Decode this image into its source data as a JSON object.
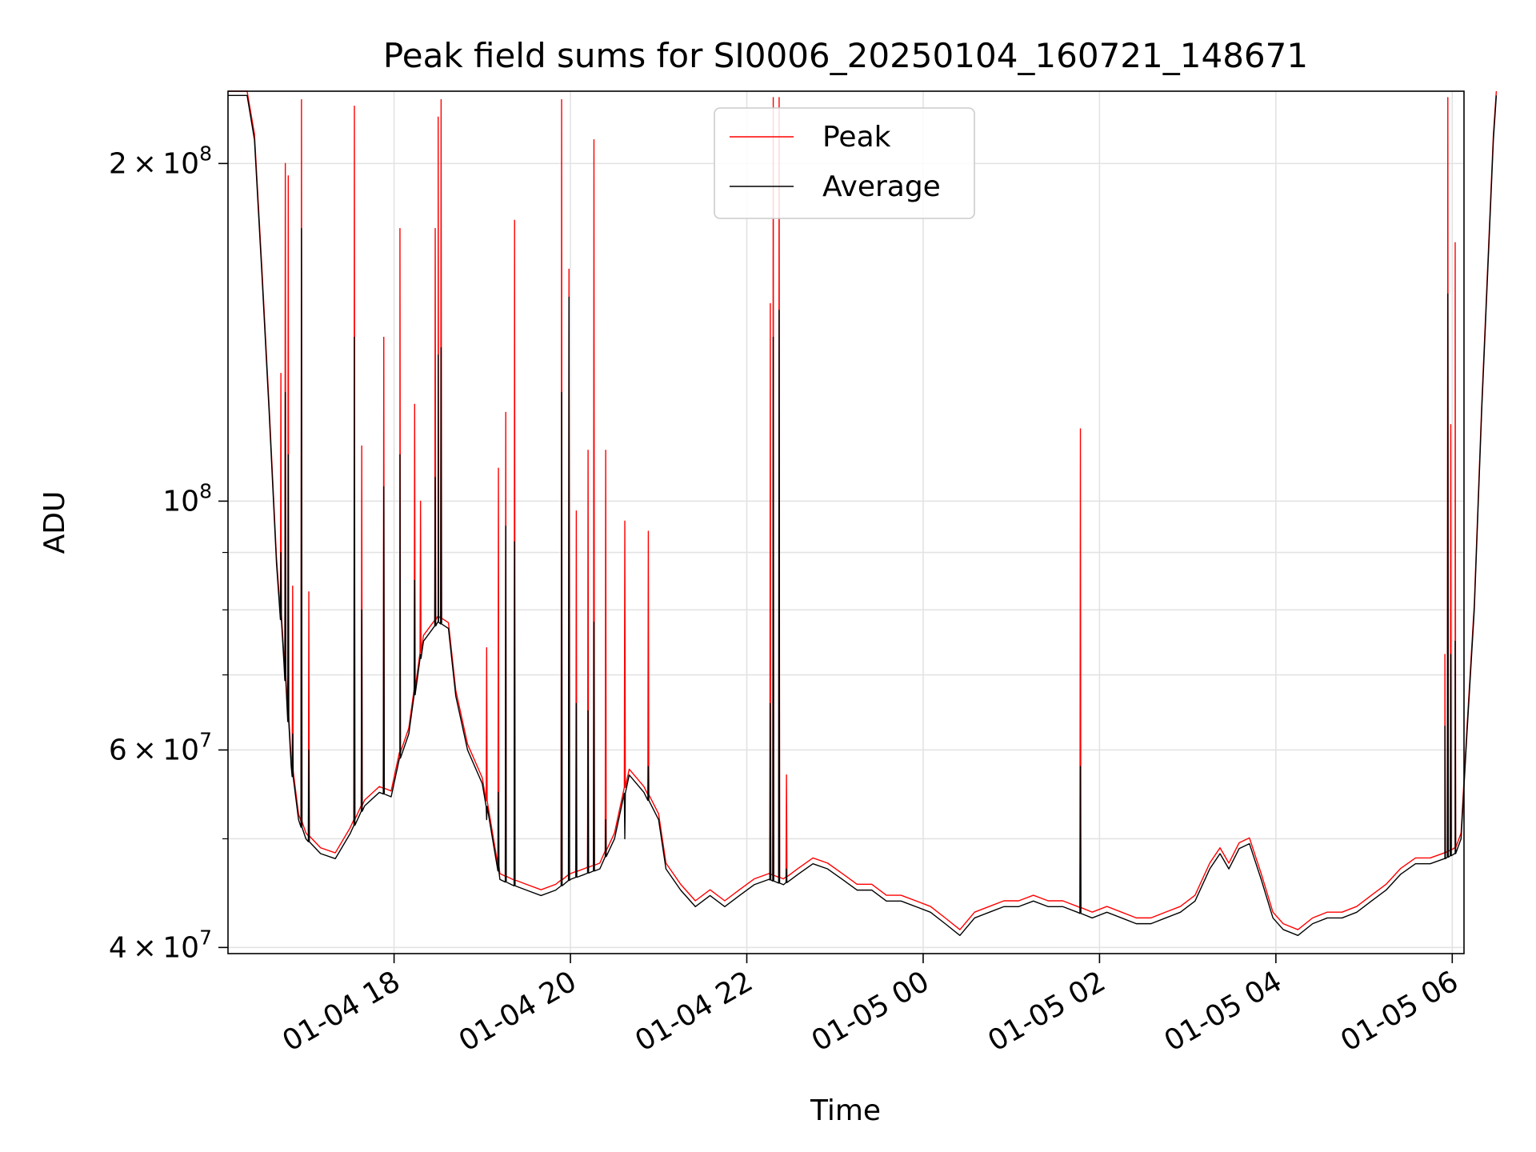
{
  "chart_data": {
    "type": "line",
    "title": "Peak field sums for SI0006_20250104_160721_148671",
    "xlabel": "Time",
    "ylabel": "ADU",
    "y_scale": "log",
    "ylim": [
      39500000,
      232000000
    ],
    "xlim": [
      "2025-01-04 16:07",
      "2025-01-05 06:08"
    ],
    "grid": true,
    "legend_position": "top-center",
    "x_ticks": [
      {
        "value": "2025-01-04 18:00",
        "label": "01-04 18"
      },
      {
        "value": "2025-01-04 20:00",
        "label": "01-04 20"
      },
      {
        "value": "2025-01-04 22:00",
        "label": "01-04 22"
      },
      {
        "value": "2025-01-05 00:00",
        "label": "01-05 00"
      },
      {
        "value": "2025-01-05 02:00",
        "label": "01-05 02"
      },
      {
        "value": "2025-01-05 04:00",
        "label": "01-05 04"
      },
      {
        "value": "2025-01-05 06:00",
        "label": "01-05 06"
      }
    ],
    "y_ticks": [
      {
        "value": 40000000,
        "mantissa": "4",
        "exp": "7"
      },
      {
        "value": 60000000,
        "mantissa": "6",
        "exp": "7"
      },
      {
        "value": 100000000,
        "mantissa": "",
        "exp": "8"
      },
      {
        "value": 200000000,
        "mantissa": "2",
        "exp": "8"
      }
    ],
    "y_minor_ticks": [
      50000000,
      70000000,
      80000000,
      90000000
    ],
    "series": [
      {
        "name": "Peak",
        "color": "#ff0000"
      },
      {
        "name": "Average",
        "color": "#000000"
      }
    ],
    "baseline": [
      [
        "2025-01-04 16:07",
        230000000
      ],
      [
        "2025-01-04 16:20",
        230000000
      ],
      [
        "2025-01-04 16:25",
        210000000
      ],
      [
        "2025-01-04 16:30",
        160000000
      ],
      [
        "2025-01-04 16:35",
        120000000
      ],
      [
        "2025-01-04 16:40",
        88000000
      ],
      [
        "2025-01-04 16:45",
        72000000
      ],
      [
        "2025-01-04 16:50",
        58000000
      ],
      [
        "2025-01-04 16:55",
        52000000
      ],
      [
        "2025-01-04 17:00",
        50000000
      ],
      [
        "2025-01-04 17:10",
        48500000
      ],
      [
        "2025-01-04 17:20",
        48000000
      ],
      [
        "2025-01-04 17:30",
        50500000
      ],
      [
        "2025-01-04 17:40",
        53500000
      ],
      [
        "2025-01-04 17:50",
        55000000
      ],
      [
        "2025-01-04 17:58",
        54500000
      ],
      [
        "2025-01-04 18:04",
        59000000
      ],
      [
        "2025-01-04 18:10",
        62000000
      ],
      [
        "2025-01-04 18:20",
        75000000
      ],
      [
        "2025-01-04 18:30",
        78000000
      ],
      [
        "2025-01-04 18:37",
        77000000
      ],
      [
        "2025-01-04 18:42",
        67000000
      ],
      [
        "2025-01-04 18:50",
        60000000
      ],
      [
        "2025-01-04 19:00",
        56000000
      ],
      [
        "2025-01-04 19:07",
        50000000
      ],
      [
        "2025-01-04 19:12",
        46000000
      ],
      [
        "2025-01-04 19:20",
        45500000
      ],
      [
        "2025-01-04 19:30",
        45000000
      ],
      [
        "2025-01-04 19:40",
        44500000
      ],
      [
        "2025-01-04 19:50",
        45000000
      ],
      [
        "2025-01-04 20:00",
        46000000
      ],
      [
        "2025-01-04 20:10",
        46500000
      ],
      [
        "2025-01-04 20:20",
        47000000
      ],
      [
        "2025-01-04 20:30",
        50000000
      ],
      [
        "2025-01-04 20:40",
        57000000
      ],
      [
        "2025-01-04 20:50",
        55000000
      ],
      [
        "2025-01-04 21:00",
        52000000
      ],
      [
        "2025-01-04 21:05",
        47000000
      ],
      [
        "2025-01-04 21:15",
        45000000
      ],
      [
        "2025-01-04 21:25",
        43500000
      ],
      [
        "2025-01-04 21:35",
        44500000
      ],
      [
        "2025-01-04 21:45",
        43500000
      ],
      [
        "2025-01-04 21:55",
        44500000
      ],
      [
        "2025-01-04 22:05",
        45500000
      ],
      [
        "2025-01-04 22:15",
        46000000
      ],
      [
        "2025-01-04 22:25",
        45500000
      ],
      [
        "2025-01-04 22:35",
        46500000
      ],
      [
        "2025-01-04 22:45",
        47500000
      ],
      [
        "2025-01-04 22:55",
        47000000
      ],
      [
        "2025-01-04 23:05",
        46000000
      ],
      [
        "2025-01-04 23:15",
        45000000
      ],
      [
        "2025-01-04 23:25",
        45000000
      ],
      [
        "2025-01-04 23:35",
        44000000
      ],
      [
        "2025-01-04 23:45",
        44000000
      ],
      [
        "2025-01-04 23:55",
        43500000
      ],
      [
        "2025-01-05 00:05",
        43000000
      ],
      [
        "2025-01-05 00:15",
        42000000
      ],
      [
        "2025-01-05 00:25",
        41000000
      ],
      [
        "2025-01-05 00:35",
        42500000
      ],
      [
        "2025-01-05 00:45",
        43000000
      ],
      [
        "2025-01-05 00:55",
        43500000
      ],
      [
        "2025-01-05 01:05",
        43500000
      ],
      [
        "2025-01-05 01:15",
        44000000
      ],
      [
        "2025-01-05 01:25",
        43500000
      ],
      [
        "2025-01-05 01:35",
        43500000
      ],
      [
        "2025-01-05 01:45",
        43000000
      ],
      [
        "2025-01-05 01:55",
        42500000
      ],
      [
        "2025-01-05 02:05",
        43000000
      ],
      [
        "2025-01-05 02:15",
        42500000
      ],
      [
        "2025-01-05 02:25",
        42000000
      ],
      [
        "2025-01-05 02:35",
        42000000
      ],
      [
        "2025-01-05 02:45",
        42500000
      ],
      [
        "2025-01-05 02:55",
        43000000
      ],
      [
        "2025-01-05 03:05",
        44000000
      ],
      [
        "2025-01-05 03:15",
        47000000
      ],
      [
        "2025-01-05 03:22",
        48500000
      ],
      [
        "2025-01-05 03:28",
        47000000
      ],
      [
        "2025-01-05 03:35",
        49000000
      ],
      [
        "2025-01-05 03:42",
        49500000
      ],
      [
        "2025-01-05 03:50",
        46000000
      ],
      [
        "2025-01-05 03:58",
        42500000
      ],
      [
        "2025-01-05 04:05",
        41500000
      ],
      [
        "2025-01-05 04:15",
        41000000
      ],
      [
        "2025-01-05 04:25",
        42000000
      ],
      [
        "2025-01-05 04:35",
        42500000
      ],
      [
        "2025-01-05 04:45",
        42500000
      ],
      [
        "2025-01-05 04:55",
        43000000
      ],
      [
        "2025-01-05 05:05",
        44000000
      ],
      [
        "2025-01-05 05:15",
        45000000
      ],
      [
        "2025-01-05 05:25",
        46500000
      ],
      [
        "2025-01-05 05:35",
        47500000
      ],
      [
        "2025-01-05 05:45",
        47500000
      ],
      [
        "2025-01-05 05:55",
        48000000
      ],
      [
        "2025-01-05 06:02",
        48500000
      ],
      [
        "2025-01-05 06:06",
        50000000
      ],
      [
        "2025-01-05 06:10",
        62000000
      ],
      [
        "2025-01-05 06:15",
        80000000
      ],
      [
        "2025-01-05 06:20",
        120000000
      ],
      [
        "2025-01-05 06:25",
        170000000
      ],
      [
        "2025-01-05 06:28",
        210000000
      ],
      [
        "2025-01-05 06:30",
        230000000
      ]
    ],
    "spikes": [
      [
        "2025-01-04 16:43",
        130000000,
        90000000
      ],
      [
        "2025-01-04 16:46",
        200000000,
        125000000
      ],
      [
        "2025-01-04 16:48",
        195000000,
        110000000
      ],
      [
        "2025-01-04 16:51",
        84000000,
        62000000
      ],
      [
        "2025-01-04 16:57",
        228000000,
        175000000
      ],
      [
        "2025-01-04 17:02",
        83000000,
        60000000
      ],
      [
        "2025-01-04 17:33",
        225000000,
        140000000
      ],
      [
        "2025-01-04 17:38",
        112000000,
        80000000
      ],
      [
        "2025-01-04 17:53",
        140000000,
        103000000
      ],
      [
        "2025-01-04 18:04",
        175000000,
        110000000
      ],
      [
        "2025-01-04 18:14",
        122000000,
        85000000
      ],
      [
        "2025-01-04 18:18",
        100000000,
        73000000
      ],
      [
        "2025-01-04 18:28",
        175000000,
        105000000
      ],
      [
        "2025-01-04 18:30",
        220000000,
        135000000
      ],
      [
        "2025-01-04 18:32",
        228000000,
        137000000
      ],
      [
        "2025-01-04 19:03",
        74000000,
        52000000
      ],
      [
        "2025-01-04 19:11",
        107000000,
        55000000
      ],
      [
        "2025-01-04 19:16",
        120000000,
        95000000
      ],
      [
        "2025-01-04 19:22",
        178000000,
        92000000
      ],
      [
        "2025-01-04 19:54",
        228000000,
        125000000
      ],
      [
        "2025-01-04 19:59",
        161000000,
        152000000
      ],
      [
        "2025-01-04 20:04",
        98000000,
        66000000
      ],
      [
        "2025-01-04 20:12",
        111000000,
        65000000
      ],
      [
        "2025-01-04 20:16",
        210000000,
        78000000
      ],
      [
        "2025-01-04 20:24",
        111000000,
        52000000
      ],
      [
        "2025-01-04 20:37",
        96000000,
        50000000
      ],
      [
        "2025-01-04 20:53",
        94000000,
        58000000
      ],
      [
        "2025-01-04 22:16",
        150000000,
        66000000
      ],
      [
        "2025-01-04 22:18",
        229000000,
        140000000
      ],
      [
        "2025-01-04 22:22",
        229000000,
        148000000
      ],
      [
        "2025-01-04 22:27",
        57000000,
        47000000
      ],
      [
        "2025-01-05 01:47",
        116000000,
        58000000
      ],
      [
        "2025-01-05 05:55",
        73000000,
        63000000
      ],
      [
        "2025-01-05 05:57",
        229000000,
        153000000
      ],
      [
        "2025-01-05 05:59",
        117000000,
        73000000
      ],
      [
        "2025-01-05 06:02",
        170000000,
        75000000
      ]
    ]
  }
}
